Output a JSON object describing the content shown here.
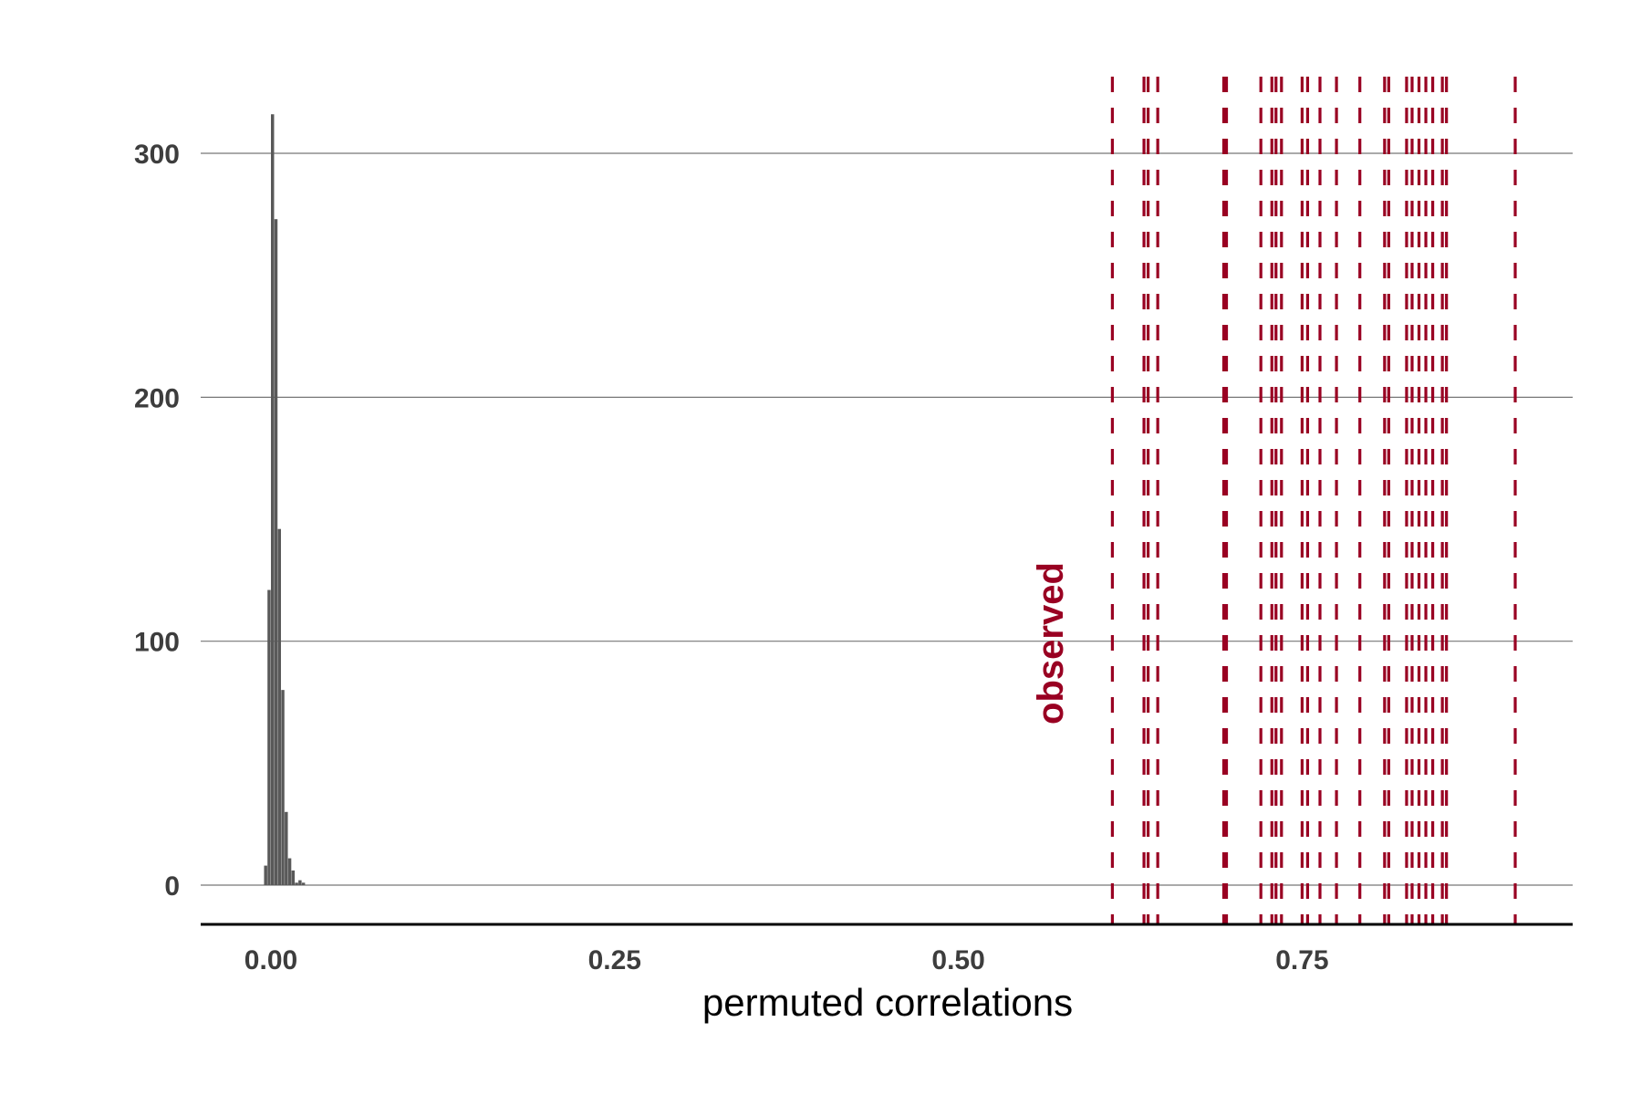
{
  "chart_data": {
    "type": "bar",
    "xlabel": "permuted correlations",
    "ylabel": "",
    "xlim": [
      -0.05,
      0.95
    ],
    "ylim": [
      -15,
      330
    ],
    "grid": "horizontal",
    "x_ticks": [
      {
        "value": 0.0,
        "label": "0.00"
      },
      {
        "value": 0.25,
        "label": "0.25"
      },
      {
        "value": 0.5,
        "label": "0.50"
      },
      {
        "value": 0.75,
        "label": "0.75"
      }
    ],
    "y_ticks": [
      {
        "value": 0,
        "label": "0"
      },
      {
        "value": 100,
        "label": "100"
      },
      {
        "value": 200,
        "label": "200"
      },
      {
        "value": 300,
        "label": "300"
      }
    ],
    "histogram": {
      "bin_width": 0.0025,
      "bins": [
        {
          "x": -0.00375,
          "count": 8
        },
        {
          "x": -0.00125,
          "count": 121
        },
        {
          "x": 0.00125,
          "count": 316
        },
        {
          "x": 0.00375,
          "count": 273
        },
        {
          "x": 0.00625,
          "count": 146
        },
        {
          "x": 0.00875,
          "count": 80
        },
        {
          "x": 0.01125,
          "count": 30
        },
        {
          "x": 0.01375,
          "count": 11
        },
        {
          "x": 0.01625,
          "count": 6
        },
        {
          "x": 0.01875,
          "count": 1
        },
        {
          "x": 0.02125,
          "count": 2
        },
        {
          "x": 0.02375,
          "count": 1
        }
      ],
      "color": "#595959"
    },
    "observed": {
      "label": "observed",
      "color": "#990022",
      "values": [
        0.612,
        0.635,
        0.638,
        0.645,
        0.693,
        0.695,
        0.72,
        0.728,
        0.731,
        0.735,
        0.75,
        0.754,
        0.763,
        0.775,
        0.792,
        0.81,
        0.813,
        0.826,
        0.83,
        0.835,
        0.84,
        0.845,
        0.852,
        0.855,
        0.905
      ]
    },
    "colors": {
      "grid": "#777777",
      "axis": "#000000"
    }
  }
}
